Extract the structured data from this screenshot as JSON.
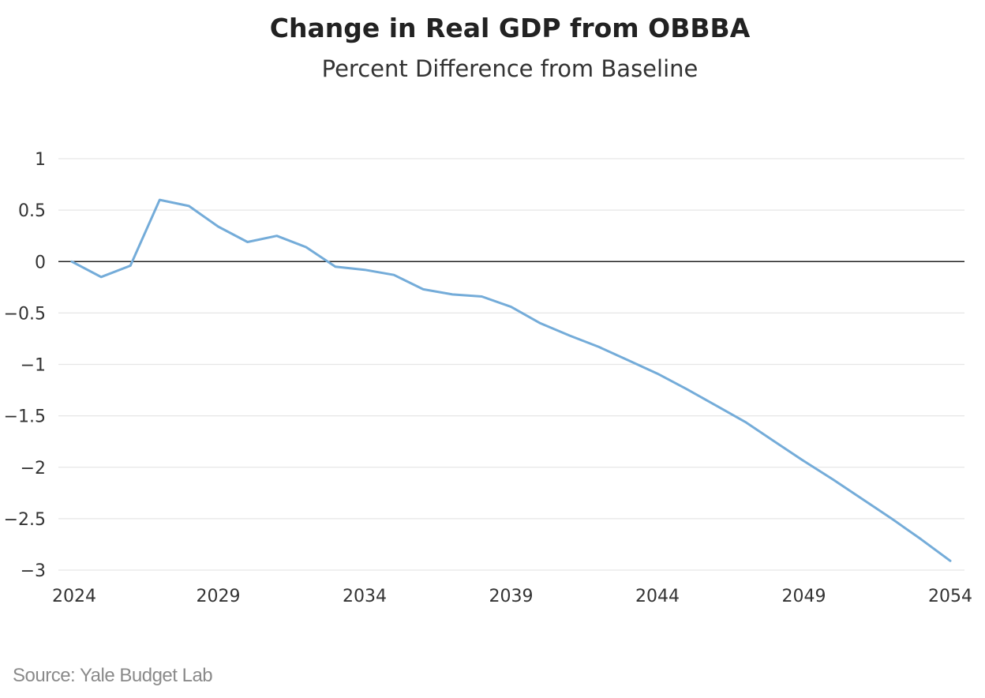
{
  "chart_data": {
    "type": "line",
    "title": "Change in Real GDP from OBBBA",
    "subtitle": "Percent Difference from Baseline",
    "xlabel": "",
    "ylabel": "",
    "xlim": [
      2024,
      2054
    ],
    "ylim": [
      -3,
      1
    ],
    "x_ticks": [
      2024,
      2029,
      2034,
      2039,
      2044,
      2049,
      2054
    ],
    "y_ticks": [
      1,
      0.5,
      0,
      -0.5,
      -1,
      -1.5,
      -2,
      -2.5,
      -3
    ],
    "y_tick_labels": [
      "1",
      "0.5",
      "0",
      "−0.5",
      "−1",
      "−1.5",
      "−2",
      "−2.5",
      "−3"
    ],
    "grid": true,
    "zero_line": true,
    "series": [
      {
        "color": "#74acd9",
        "x": [
          2024,
          2025,
          2026,
          2027,
          2028,
          2029,
          2030,
          2031,
          2032,
          2033,
          2034,
          2035,
          2036,
          2037,
          2038,
          2039,
          2040,
          2041,
          2042,
          2043,
          2044,
          2045,
          2046,
          2047,
          2048,
          2049,
          2050,
          2051,
          2052,
          2053,
          2054
        ],
        "values": [
          0.0,
          -0.15,
          -0.04,
          0.6,
          0.54,
          0.34,
          0.19,
          0.25,
          0.14,
          -0.05,
          -0.08,
          -0.13,
          -0.27,
          -0.32,
          -0.34,
          -0.44,
          -0.6,
          -0.72,
          -0.83,
          -0.96,
          -1.09,
          -1.24,
          -1.4,
          -1.56,
          -1.75,
          -1.94,
          -2.12,
          -2.31,
          -2.5,
          -2.7,
          -2.91
        ]
      }
    ]
  },
  "source": "Source: Yale Budget Lab"
}
